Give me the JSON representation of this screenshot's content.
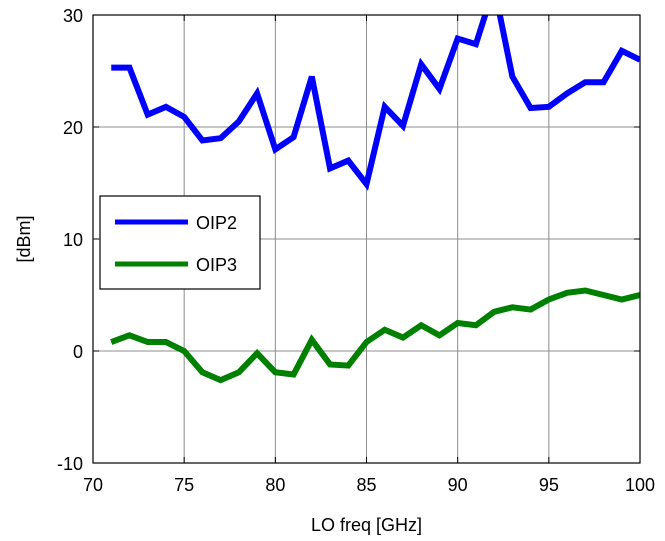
{
  "chart_data": {
    "type": "line",
    "title": "",
    "xlabel": "LO freq [GHz]",
    "ylabel": "[dBm]",
    "xlim": [
      70,
      100
    ],
    "ylim": [
      -10,
      30
    ],
    "xticks": [
      70,
      75,
      80,
      85,
      90,
      95,
      100
    ],
    "yticks": [
      -10,
      0,
      10,
      20,
      30
    ],
    "xtick_labels": [
      "70",
      "75",
      "80",
      "85",
      "90",
      "95",
      "100"
    ],
    "ytick_labels": [
      "-10",
      "0",
      "10",
      "20",
      "30"
    ],
    "grid": true,
    "legend_position": "middle-left",
    "series": [
      {
        "name": "OIP2",
        "color": "#0000ff",
        "x": [
          71,
          72,
          73,
          74,
          75,
          76,
          77,
          78,
          79,
          80,
          81,
          82,
          83,
          84,
          85,
          86,
          87,
          88,
          89,
          90,
          91,
          92,
          93,
          94,
          95,
          96,
          97,
          98,
          99,
          100
        ],
        "y": [
          25.3,
          25.3,
          21.1,
          21.8,
          20.9,
          18.8,
          19.0,
          20.5,
          23.0,
          18.0,
          19.1,
          24.5,
          16.3,
          17.0,
          14.9,
          21.8,
          20.1,
          25.6,
          23.4,
          27.9,
          27.4,
          32.5,
          24.5,
          21.7,
          21.8,
          23.0,
          24.0,
          24.0,
          26.8,
          26.0
        ]
      },
      {
        "name": "OIP3",
        "color": "#008000",
        "x": [
          71,
          72,
          73,
          74,
          75,
          76,
          77,
          78,
          79,
          80,
          81,
          82,
          83,
          84,
          85,
          86,
          87,
          88,
          89,
          90,
          91,
          92,
          93,
          94,
          95,
          96,
          97,
          98,
          99,
          100
        ],
        "y": [
          0.8,
          1.4,
          0.8,
          0.8,
          0.0,
          -1.9,
          -2.6,
          -1.9,
          -0.2,
          -1.9,
          -2.1,
          1.0,
          -1.2,
          -1.3,
          0.8,
          1.9,
          1.2,
          2.3,
          1.4,
          2.5,
          2.3,
          3.5,
          3.9,
          3.7,
          4.6,
          5.2,
          5.4,
          5.0,
          4.6,
          5.0
        ]
      }
    ]
  }
}
